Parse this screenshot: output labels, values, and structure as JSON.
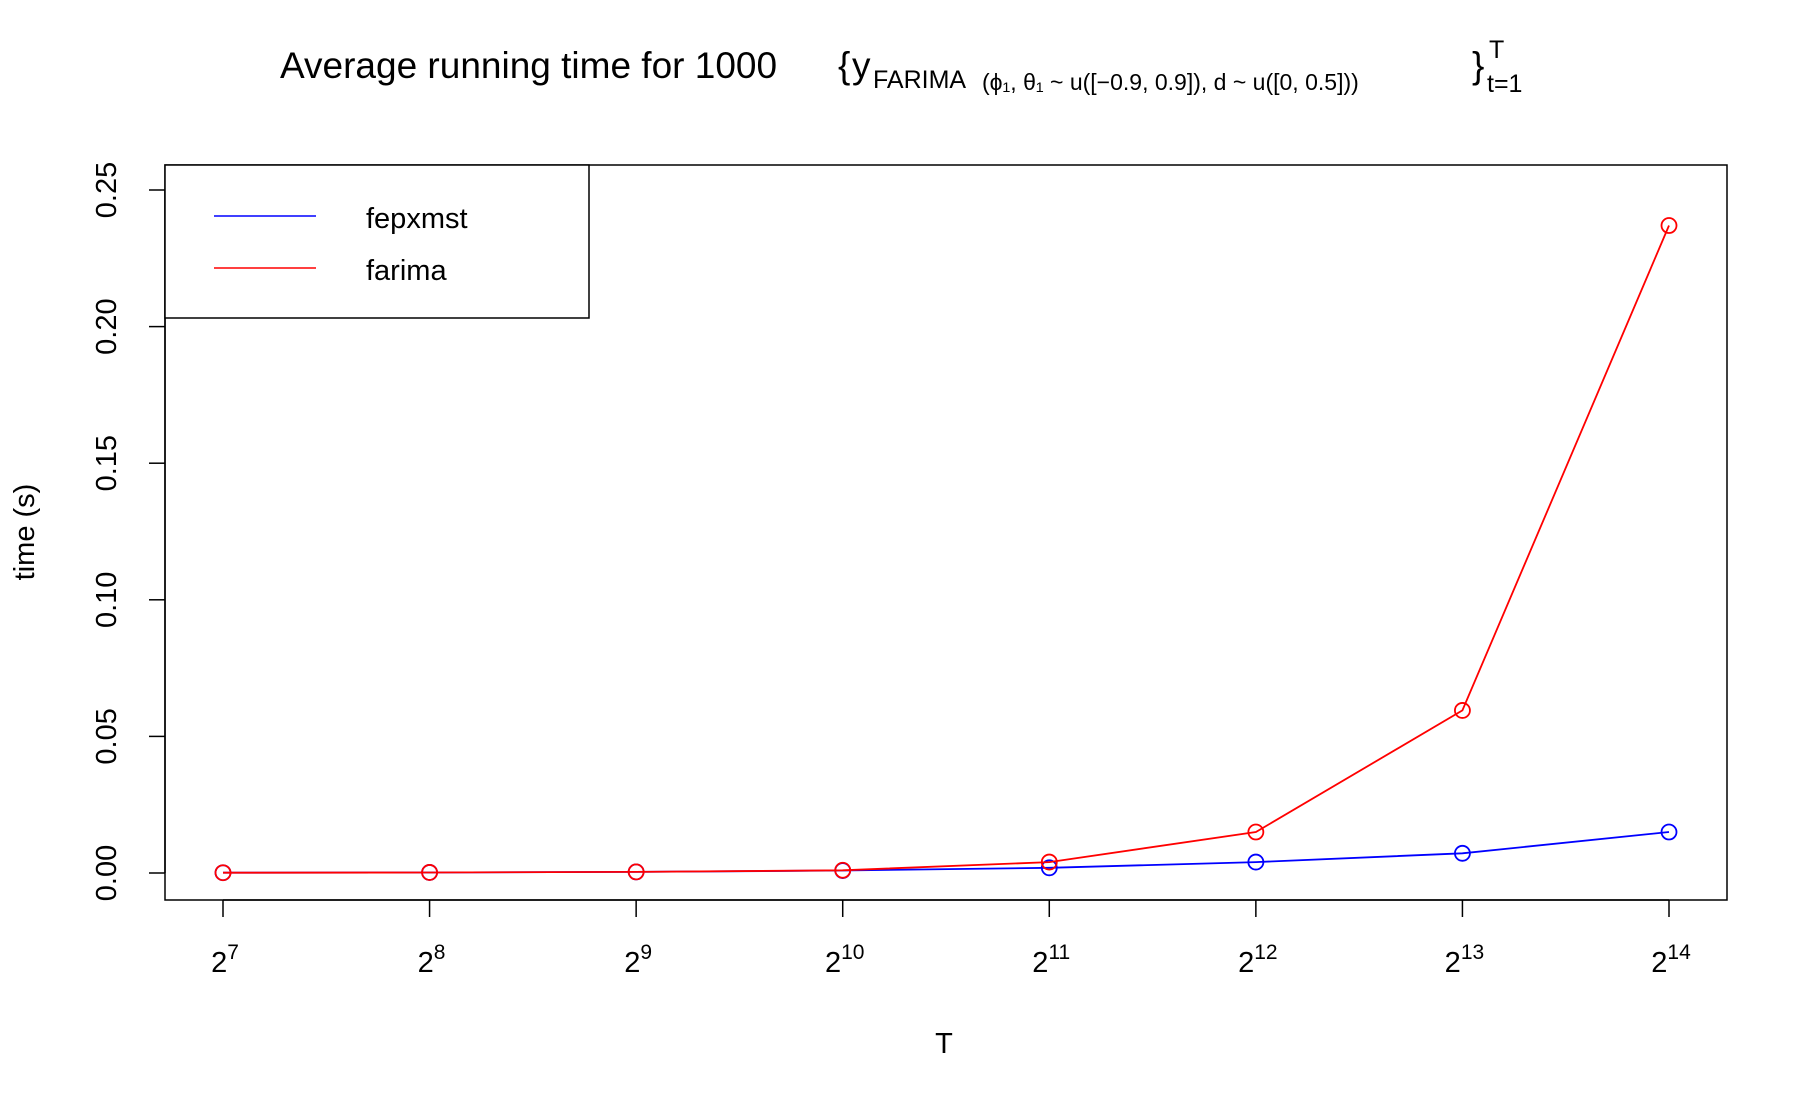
{
  "chart_data": {
    "type": "line",
    "title": {
      "main": "Average running time for 1000",
      "open_brace": "{",
      "y": "y",
      "sub_model": "FARIMA",
      "sub_params": "(ϕ₁, θ₁ ~ u([−0.9, 0.9]),  d ~ u([0, 0.5]))",
      "close_brace": "}",
      "sup": "T",
      "sub_range": "t=1"
    },
    "xlabel": "T",
    "ylabel": "time (s)",
    "x_ticks": [
      {
        "base": "2",
        "exp": "7"
      },
      {
        "base": "2",
        "exp": "8"
      },
      {
        "base": "2",
        "exp": "9"
      },
      {
        "base": "2",
        "exp": "10"
      },
      {
        "base": "2",
        "exp": "11"
      },
      {
        "base": "2",
        "exp": "12"
      },
      {
        "base": "2",
        "exp": "13"
      },
      {
        "base": "2",
        "exp": "14"
      }
    ],
    "x_values": [
      128,
      256,
      512,
      1024,
      2048,
      4096,
      8192,
      16384
    ],
    "xscale": "log2",
    "y_ticks": [
      "0.00",
      "0.05",
      "0.10",
      "0.15",
      "0.20",
      "0.25"
    ],
    "ylim": [
      -0.01,
      0.26
    ],
    "grid": false,
    "legend_position": "top-left",
    "series": [
      {
        "name": "fepxmst",
        "color": "#0000FF",
        "values": [
          0.0001,
          0.0002,
          0.0004,
          0.0009,
          0.0019,
          0.004,
          0.0072,
          0.015
        ]
      },
      {
        "name": "farima",
        "color": "#FF0000",
        "values": [
          0.0001,
          0.0002,
          0.0004,
          0.001,
          0.004,
          0.015,
          0.0595,
          0.237
        ]
      }
    ]
  }
}
